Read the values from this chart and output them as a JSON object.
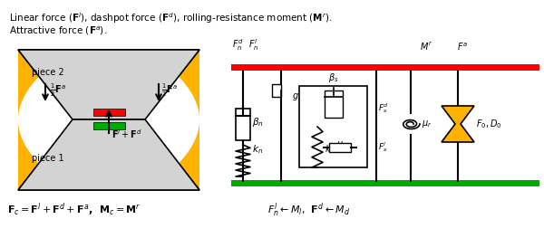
{
  "title_line1": "Linear force ($\\mathbf{F}^l$), dashpot force ($\\mathbf{F}^d$), rolling-resistance moment ($\\mathbf{M}^r$).",
  "title_line2": "Attractive force ($\\mathbf{F}^a$).",
  "bottom_left": "$\\mathbf{F}_c = \\mathbf{F}^l + \\mathbf{F}^d + \\mathbf{F}^a$,  $\\mathbf{M}_c = \\mathbf{M}^r$",
  "bottom_right": "$F_n^l \\leftarrow M_l$,  $\\mathbf{F}^d \\leftarrow M_d$",
  "bg_color": "#ffffff",
  "piece_fill": "#d3d3d3",
  "gold_fill": "#FFB300",
  "red_bar": "#ff0000",
  "green_bar": "#00aa00",
  "red_rail": "#ff0000",
  "green_rail": "#00aa00"
}
